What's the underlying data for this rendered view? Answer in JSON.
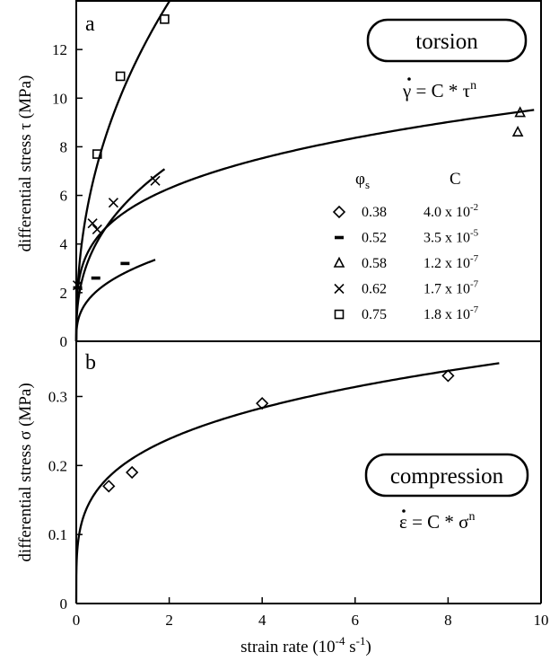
{
  "chart_data": [
    {
      "panel": "a",
      "type": "scatter",
      "ylabel": "differential stress τ (MPa)",
      "ylim": [
        0,
        14
      ],
      "yticks": [
        0,
        2,
        4,
        6,
        8,
        10,
        12
      ],
      "xlim": [
        0,
        10
      ],
      "box_label": "torsion",
      "equation": {
        "lhs": "γ",
        "rhs": " = C * τ",
        "exp": "n"
      },
      "legend": {
        "placement": "right",
        "head_phi": "φ",
        "head_phi_sub": "s",
        "head_c": "C",
        "entries": [
          {
            "marker": "diamond",
            "phi": "0.38",
            "c": "4.0 x 10",
            "c_exp": "-2"
          },
          {
            "marker": "dash",
            "phi": "0.52",
            "c": "3.5 x 10",
            "c_exp": "-5"
          },
          {
            "marker": "triangle",
            "phi": "0.58",
            "c": "1.2 x 10",
            "c_exp": "-7"
          },
          {
            "marker": "cross",
            "phi": "0.62",
            "c": "1.7 x 10",
            "c_exp": "-7"
          },
          {
            "marker": "square",
            "phi": "0.75",
            "c": "1.8 x 10",
            "c_exp": "-7"
          }
        ]
      },
      "series": [
        {
          "phi": "0.52",
          "marker": "dash",
          "points": [
            [
              0.03,
              2.2
            ],
            [
              0.42,
              2.6
            ],
            [
              1.05,
              3.2
            ]
          ],
          "fit": {
            "a": 2.77,
            "p": 0.36,
            "xmax": 1.7
          }
        },
        {
          "phi": "0.58",
          "marker": "triangle",
          "points": [
            [
              9.5,
              8.6
            ],
            [
              9.55,
              9.4
            ]
          ],
          "fit": {
            "a": 5.25,
            "p": 0.26,
            "xmax": 9.85
          }
        },
        {
          "phi": "0.62",
          "marker": "cross",
          "points": [
            [
              0.03,
              2.3
            ],
            [
              0.35,
              4.85
            ],
            [
              0.45,
              4.6
            ],
            [
              0.8,
              5.7
            ],
            [
              1.7,
              6.6
            ]
          ],
          "fit": {
            "a": 5.55,
            "p": 0.38,
            "xmax": 1.9
          }
        },
        {
          "phi": "0.75",
          "marker": "square",
          "points": [
            [
              0.45,
              7.7
            ],
            [
              0.95,
              10.9
            ],
            [
              1.9,
              13.25
            ]
          ],
          "fit": {
            "a": 10.3,
            "p": 0.44,
            "xmax": 2.25
          }
        }
      ]
    },
    {
      "panel": "b",
      "type": "scatter",
      "xlabel": "strain rate (10",
      "xlabel_exp": "-4",
      "xlabel_unit": " s",
      "xlabel_unit_exp": "-1",
      "xlabel_close": ")",
      "ylabel": "differential stress σ (MPa)",
      "xlim": [
        0,
        10
      ],
      "xticks": [
        0,
        2,
        4,
        6,
        8,
        10
      ],
      "ylim": [
        0,
        0.38
      ],
      "yticks": [
        0,
        0.1,
        0.2,
        0.3
      ],
      "box_label": "compression",
      "equation": {
        "lhs": "ε",
        "rhs": " = C * σ",
        "exp": "n"
      },
      "series": [
        {
          "phi": "0.38",
          "marker": "diamond",
          "points": [
            [
              0.7,
              0.17
            ],
            [
              1.2,
              0.19
            ],
            [
              4.0,
              0.29
            ],
            [
              8.0,
              0.33
            ]
          ],
          "fit": {
            "a": 0.2005,
            "p": 0.25,
            "xmax": 9.1
          }
        }
      ]
    }
  ]
}
